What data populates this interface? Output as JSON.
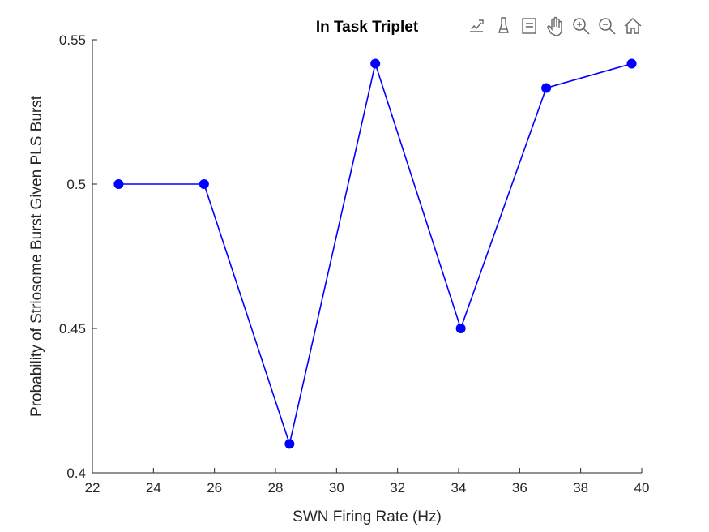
{
  "toolbar": {
    "icons": [
      "export-icon",
      "brush-icon",
      "datatip-icon",
      "pan-hand-icon",
      "zoom-in-icon",
      "zoom-out-icon",
      "home-icon"
    ]
  },
  "chart_data": {
    "type": "line",
    "title": "In Task Triplet",
    "xlabel": "SWN Firing Rate (Hz)",
    "ylabel": "Probability of Striosome Burst Given PLS Burst",
    "xlim": [
      22,
      40
    ],
    "ylim": [
      0.4,
      0.55
    ],
    "xticks": [
      "22",
      "24",
      "26",
      "28",
      "30",
      "32",
      "34",
      "36",
      "38",
      "40"
    ],
    "yticks": [
      "0.4",
      "0.45",
      "0.5",
      "0.55"
    ],
    "grid": false,
    "series": [
      {
        "color": "#0000ff",
        "marker": "filled-circle",
        "x": [
          22.86,
          25.66,
          28.46,
          31.27,
          34.07,
          36.87,
          39.67
        ],
        "y": [
          0.5,
          0.5,
          0.41,
          0.5417,
          0.45,
          0.5333,
          0.5417
        ]
      }
    ]
  }
}
